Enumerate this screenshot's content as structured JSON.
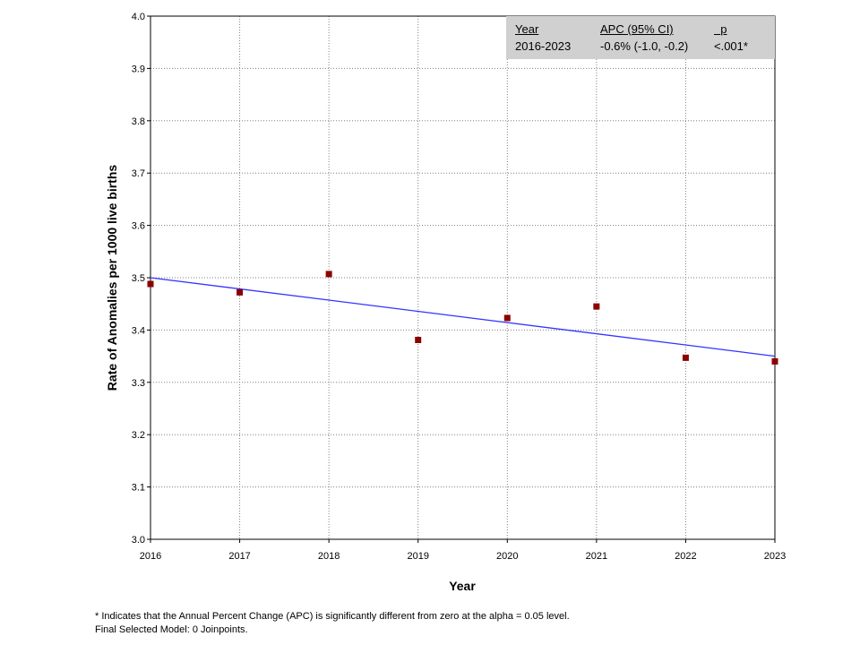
{
  "chart_data": {
    "type": "scatter",
    "x": [
      2016,
      2017,
      2018,
      2019,
      2020,
      2021,
      2022,
      2023
    ],
    "y": [
      3.488,
      3.472,
      3.507,
      3.381,
      3.423,
      3.445,
      3.347,
      3.34
    ],
    "fit_line": {
      "x": [
        2016,
        2023
      ],
      "y": [
        3.5,
        3.35
      ]
    },
    "xlabel": "Year",
    "ylabel": "Rate of Anomalies per 1000 live births",
    "xlim": [
      2016,
      2023
    ],
    "ylim": [
      3.0,
      4.0
    ],
    "x_ticks": [
      "2016",
      "2017",
      "2018",
      "2019",
      "2020",
      "2021",
      "2022",
      "2023"
    ],
    "y_ticks": [
      "3.0",
      "3.1",
      "3.2",
      "3.3",
      "3.4",
      "3.5",
      "3.6",
      "3.7",
      "3.8",
      "3.9",
      "4.0"
    ],
    "grid": true,
    "colors": {
      "points": "#8b0000",
      "fit_line": "#3333ff",
      "grid": "#808080"
    }
  },
  "apc_table": {
    "headers": {
      "year": "Year",
      "apc": "APC (95% CI)",
      "p": "p"
    },
    "row": {
      "year": "2016-2023",
      "apc": "-0.6% (-1.0, -0.2)",
      "p": "<.001*"
    }
  },
  "footnotes": {
    "line1": "* Indicates that the Annual Percent Change (APC) is significantly different from zero at the alpha = 0.05 level.",
    "line2": "Final Selected Model: 0 Joinpoints."
  }
}
